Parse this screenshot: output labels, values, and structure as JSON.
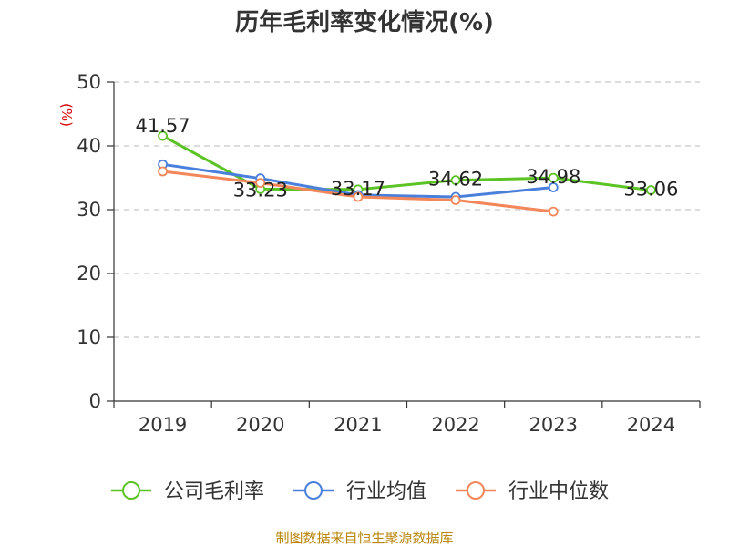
{
  "chart_data": {
    "type": "line",
    "title": "历年毛利率变化情况(%)",
    "ylabel": "(%)",
    "categories": [
      "2019",
      "2020",
      "2021",
      "2022",
      "2023",
      "2024"
    ],
    "ylim": [
      0,
      50
    ],
    "yticks": [
      0,
      10,
      20,
      30,
      40,
      50
    ],
    "grid": "horizontal dashed",
    "legend_position": "bottom",
    "series": [
      {
        "name": "公司毛利率",
        "color": "#5cc324",
        "values": [
          41.57,
          33.23,
          33.17,
          34.62,
          34.98,
          33.06
        ],
        "labels": [
          "41.57",
          "33.23",
          "33.17",
          "34.62",
          "34.98",
          "33.06"
        ]
      },
      {
        "name": "行业均值",
        "color": "#4a7fdc",
        "values": [
          37.1,
          34.9,
          32.3,
          32.0,
          33.5,
          null
        ]
      },
      {
        "name": "行业中位数",
        "color": "#f4875a",
        "values": [
          36.0,
          34.2,
          32.0,
          31.5,
          29.7,
          null
        ]
      }
    ],
    "source": "制图数据来自恒生聚源数据库"
  }
}
